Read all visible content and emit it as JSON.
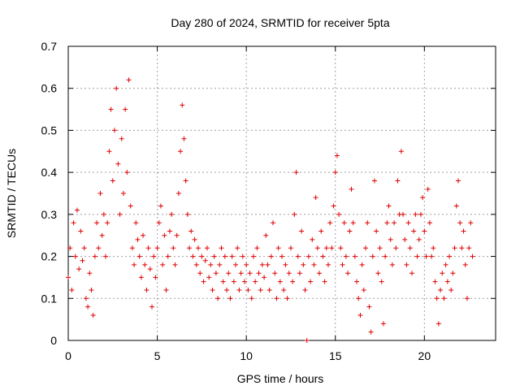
{
  "chart_data": {
    "type": "scatter",
    "title": "Day 280 of 2024, SRMTID for receiver 5pta",
    "xlabel": "GPS time / hours",
    "ylabel": "SRMTID / TECUs",
    "xlim": [
      0,
      24
    ],
    "ylim": [
      0,
      0.7
    ],
    "xticks": [
      0,
      5,
      10,
      15,
      20
    ],
    "yticks": [
      0,
      0.1,
      0.2,
      0.3,
      0.4,
      0.5,
      0.6,
      0.7
    ],
    "xtick_labels": [
      "0",
      "5",
      "10",
      "15",
      "20"
    ],
    "ytick_labels": [
      "0",
      "0.1",
      "0.2",
      "0.3",
      "0.4",
      "0.5",
      "0.6",
      "0.7"
    ],
    "grid": true,
    "marker": "plus",
    "color": "#e00000",
    "series": [
      {
        "name": "SRMTID",
        "points": [
          [
            0.0,
            0.15
          ],
          [
            0.1,
            0.22
          ],
          [
            0.2,
            0.12
          ],
          [
            0.3,
            0.28
          ],
          [
            0.4,
            0.2
          ],
          [
            0.5,
            0.31
          ],
          [
            0.6,
            0.17
          ],
          [
            0.7,
            0.26
          ],
          [
            0.8,
            0.19
          ],
          [
            0.9,
            0.22
          ],
          [
            1.0,
            0.1
          ],
          [
            1.1,
            0.08
          ],
          [
            1.2,
            0.16
          ],
          [
            1.3,
            0.12
          ],
          [
            1.4,
            0.06
          ],
          [
            1.5,
            0.2
          ],
          [
            1.6,
            0.28
          ],
          [
            1.7,
            0.22
          ],
          [
            1.8,
            0.35
          ],
          [
            1.9,
            0.25
          ],
          [
            2.0,
            0.3
          ],
          [
            2.1,
            0.2
          ],
          [
            2.2,
            0.28
          ],
          [
            2.3,
            0.45
          ],
          [
            2.4,
            0.55
          ],
          [
            2.5,
            0.38
          ],
          [
            2.6,
            0.5
          ],
          [
            2.7,
            0.6
          ],
          [
            2.8,
            0.42
          ],
          [
            2.9,
            0.3
          ],
          [
            3.0,
            0.48
          ],
          [
            3.1,
            0.35
          ],
          [
            3.2,
            0.55
          ],
          [
            3.3,
            0.4
          ],
          [
            3.4,
            0.62
          ],
          [
            3.5,
            0.32
          ],
          [
            3.6,
            0.22
          ],
          [
            3.7,
            0.18
          ],
          [
            3.8,
            0.28
          ],
          [
            3.9,
            0.24
          ],
          [
            4.0,
            0.2
          ],
          [
            4.1,
            0.15
          ],
          [
            4.2,
            0.25
          ],
          [
            4.3,
            0.18
          ],
          [
            4.4,
            0.12
          ],
          [
            4.5,
            0.22
          ],
          [
            4.6,
            0.17
          ],
          [
            4.7,
            0.08
          ],
          [
            4.8,
            0.2
          ],
          [
            4.9,
            0.15
          ],
          [
            5.0,
            0.22
          ],
          [
            5.1,
            0.28
          ],
          [
            5.2,
            0.32
          ],
          [
            5.3,
            0.18
          ],
          [
            5.4,
            0.25
          ],
          [
            5.5,
            0.12
          ],
          [
            5.6,
            0.2
          ],
          [
            5.7,
            0.26
          ],
          [
            5.8,
            0.3
          ],
          [
            5.9,
            0.22
          ],
          [
            6.0,
            0.18
          ],
          [
            6.1,
            0.25
          ],
          [
            6.2,
            0.35
          ],
          [
            6.3,
            0.45
          ],
          [
            6.4,
            0.56
          ],
          [
            6.5,
            0.48
          ],
          [
            6.6,
            0.38
          ],
          [
            6.7,
            0.3
          ],
          [
            6.8,
            0.22
          ],
          [
            6.9,
            0.26
          ],
          [
            7.0,
            0.2
          ],
          [
            7.1,
            0.24
          ],
          [
            7.2,
            0.18
          ],
          [
            7.3,
            0.22
          ],
          [
            7.4,
            0.16
          ],
          [
            7.5,
            0.2
          ],
          [
            7.6,
            0.14
          ],
          [
            7.7,
            0.19
          ],
          [
            7.8,
            0.22
          ],
          [
            7.9,
            0.15
          ],
          [
            8.0,
            0.18
          ],
          [
            8.1,
            0.12
          ],
          [
            8.2,
            0.2
          ],
          [
            8.3,
            0.16
          ],
          [
            8.4,
            0.1
          ],
          [
            8.5,
            0.18
          ],
          [
            8.6,
            0.22
          ],
          [
            8.7,
            0.14
          ],
          [
            8.8,
            0.2
          ],
          [
            8.9,
            0.12
          ],
          [
            9.0,
            0.16
          ],
          [
            9.1,
            0.1
          ],
          [
            9.2,
            0.2
          ],
          [
            9.3,
            0.14
          ],
          [
            9.4,
            0.18
          ],
          [
            9.5,
            0.22
          ],
          [
            9.6,
            0.12
          ],
          [
            9.7,
            0.16
          ],
          [
            9.8,
            0.2
          ],
          [
            9.9,
            0.14
          ],
          [
            10.0,
            0.18
          ],
          [
            10.1,
            0.12
          ],
          [
            10.2,
            0.16
          ],
          [
            10.3,
            0.1
          ],
          [
            10.4,
            0.2
          ],
          [
            10.5,
            0.14
          ],
          [
            10.6,
            0.22
          ],
          [
            10.7,
            0.16
          ],
          [
            10.8,
            0.12
          ],
          [
            10.9,
            0.18
          ],
          [
            11.0,
            0.15
          ],
          [
            11.1,
            0.25
          ],
          [
            11.2,
            0.18
          ],
          [
            11.3,
            0.12
          ],
          [
            11.4,
            0.2
          ],
          [
            11.5,
            0.28
          ],
          [
            11.6,
            0.16
          ],
          [
            11.7,
            0.1
          ],
          [
            11.8,
            0.22
          ],
          [
            11.9,
            0.14
          ],
          [
            12.0,
            0.2
          ],
          [
            12.1,
            0.12
          ],
          [
            12.2,
            0.18
          ],
          [
            12.3,
            0.1
          ],
          [
            12.4,
            0.16
          ],
          [
            12.5,
            0.22
          ],
          [
            12.6,
            0.14
          ],
          [
            12.7,
            0.3
          ],
          [
            12.8,
            0.4
          ],
          [
            12.9,
            0.2
          ],
          [
            13.0,
            0.16
          ],
          [
            13.1,
            0.26
          ],
          [
            13.2,
            0.18
          ],
          [
            13.3,
            0.12
          ],
          [
            13.4,
            0.0
          ],
          [
            13.5,
            0.2
          ],
          [
            13.6,
            0.14
          ],
          [
            13.7,
            0.24
          ],
          [
            13.8,
            0.18
          ],
          [
            13.9,
            0.34
          ],
          [
            14.0,
            0.22
          ],
          [
            14.1,
            0.16
          ],
          [
            14.2,
            0.26
          ],
          [
            14.3,
            0.2
          ],
          [
            14.4,
            0.14
          ],
          [
            14.5,
            0.22
          ],
          [
            14.6,
            0.18
          ],
          [
            14.7,
            0.28
          ],
          [
            14.8,
            0.22
          ],
          [
            14.9,
            0.32
          ],
          [
            15.0,
            0.4
          ],
          [
            15.1,
            0.44
          ],
          [
            15.2,
            0.3
          ],
          [
            15.3,
            0.22
          ],
          [
            15.4,
            0.18
          ],
          [
            15.5,
            0.28
          ],
          [
            15.6,
            0.2
          ],
          [
            15.7,
            0.16
          ],
          [
            15.8,
            0.26
          ],
          [
            15.9,
            0.36
          ],
          [
            16.0,
            0.28
          ],
          [
            16.1,
            0.2
          ],
          [
            16.2,
            0.14
          ],
          [
            16.3,
            0.1
          ],
          [
            16.4,
            0.06
          ],
          [
            16.5,
            0.18
          ],
          [
            16.6,
            0.12
          ],
          [
            16.7,
            0.22
          ],
          [
            16.8,
            0.28
          ],
          [
            16.9,
            0.08
          ],
          [
            17.0,
            0.02
          ],
          [
            17.1,
            0.2
          ],
          [
            17.2,
            0.38
          ],
          [
            17.3,
            0.26
          ],
          [
            17.4,
            0.16
          ],
          [
            17.5,
            0.22
          ],
          [
            17.6,
            0.14
          ],
          [
            17.7,
            0.04
          ],
          [
            17.8,
            0.2
          ],
          [
            17.9,
            0.28
          ],
          [
            18.0,
            0.32
          ],
          [
            18.1,
            0.24
          ],
          [
            18.2,
            0.18
          ],
          [
            18.3,
            0.28
          ],
          [
            18.4,
            0.22
          ],
          [
            18.5,
            0.38
          ],
          [
            18.6,
            0.3
          ],
          [
            18.7,
            0.45
          ],
          [
            18.8,
            0.3
          ],
          [
            18.9,
            0.24
          ],
          [
            19.0,
            0.18
          ],
          [
            19.1,
            0.28
          ],
          [
            19.2,
            0.22
          ],
          [
            19.3,
            0.16
          ],
          [
            19.4,
            0.26
          ],
          [
            19.5,
            0.3
          ],
          [
            19.6,
            0.2
          ],
          [
            19.7,
            0.24
          ],
          [
            19.8,
            0.3
          ],
          [
            19.9,
            0.34
          ],
          [
            20.0,
            0.26
          ],
          [
            20.1,
            0.2
          ],
          [
            20.2,
            0.36
          ],
          [
            20.3,
            0.28
          ],
          [
            20.4,
            0.2
          ],
          [
            20.5,
            0.22
          ],
          [
            20.6,
            0.14
          ],
          [
            20.7,
            0.1
          ],
          [
            20.8,
            0.04
          ],
          [
            20.9,
            0.12
          ],
          [
            21.0,
            0.16
          ],
          [
            21.1,
            0.1
          ],
          [
            21.2,
            0.18
          ],
          [
            21.3,
            0.14
          ],
          [
            21.4,
            0.2
          ],
          [
            21.5,
            0.12
          ],
          [
            21.6,
            0.16
          ],
          [
            21.7,
            0.22
          ],
          [
            21.8,
            0.32
          ],
          [
            21.9,
            0.38
          ],
          [
            22.0,
            0.28
          ],
          [
            22.1,
            0.22
          ],
          [
            22.2,
            0.26
          ],
          [
            22.3,
            0.18
          ],
          [
            22.4,
            0.1
          ],
          [
            22.5,
            0.22
          ],
          [
            22.6,
            0.28
          ],
          [
            22.7,
            0.2
          ]
        ]
      }
    ]
  }
}
